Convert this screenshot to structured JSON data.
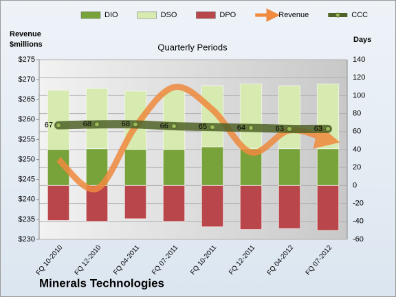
{
  "chart_data": {
    "type": "combo",
    "title": "Quarterly Periods",
    "footer": "Minerals Technologies",
    "ylabel": [
      "Revenue",
      "$millions"
    ],
    "y2label": "Days",
    "categories": [
      "FQ 10-2010",
      "FQ 12-2010",
      "FQ 04-2011",
      "FQ 07-2011",
      "FQ 10-2011",
      "FQ 12-2011",
      "FQ 04-2012",
      "FQ 07-2012"
    ],
    "ylim": [
      230,
      275
    ],
    "yticks": [
      {
        "value": 230,
        "label": "$230"
      },
      {
        "value": 235,
        "label": "$235"
      },
      {
        "value": 240,
        "label": "$240"
      },
      {
        "value": 245,
        "label": "$245"
      },
      {
        "value": 250,
        "label": "$250"
      },
      {
        "value": 255,
        "label": "$255"
      },
      {
        "value": 260,
        "label": "$260"
      },
      {
        "value": 265,
        "label": "$265"
      },
      {
        "value": 270,
        "label": "$270"
      },
      {
        "value": 275,
        "label": "$275"
      }
    ],
    "y2lim": [
      -60,
      140
    ],
    "y2ticks": [
      -60,
      -40,
      -20,
      0,
      20,
      40,
      60,
      80,
      100,
      120,
      140
    ],
    "grid": true,
    "series": [
      {
        "name": "DIO",
        "type": "bar",
        "axis": "y2",
        "color": "#77a33a",
        "values": [
          40,
          41,
          40,
          40,
          43,
          41,
          41,
          41
        ]
      },
      {
        "name": "DSO",
        "type": "bar",
        "axis": "y2",
        "color": "#d7eab0",
        "values": [
          66,
          67,
          65,
          66,
          68,
          72,
          70,
          72
        ]
      },
      {
        "name": "DPO",
        "type": "bar",
        "axis": "y2",
        "color": "#b8464a",
        "values": [
          -39,
          -40,
          -37,
          -40,
          -46,
          -49,
          -48,
          -50
        ]
      },
      {
        "name": "Revenue",
        "type": "line",
        "color": "#ef8a3e",
        "values": [
          250,
          242.7,
          258.2,
          268.1,
          262.5,
          251.8,
          257.3,
          255
        ]
      },
      {
        "name": "CCC",
        "type": "line",
        "axis": "y2",
        "color": "#4f6228",
        "values": [
          67,
          68,
          68,
          66,
          65,
          64,
          63,
          63
        ]
      }
    ]
  }
}
